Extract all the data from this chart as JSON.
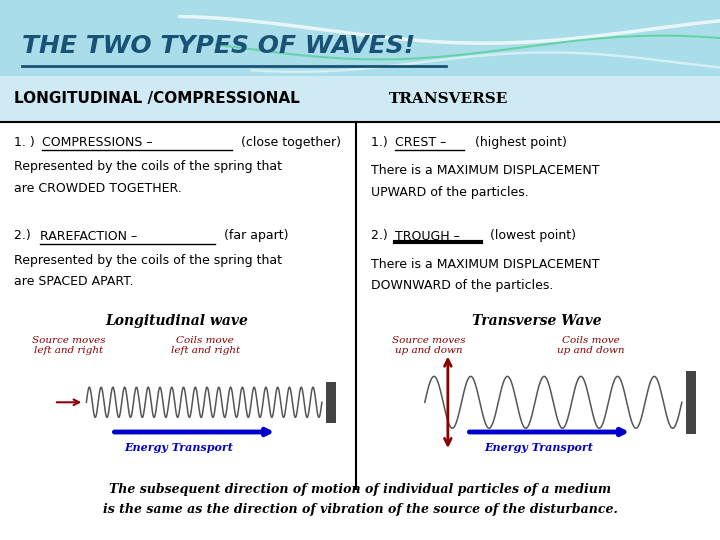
{
  "title": "THE TWO TYPES OF WAVES!",
  "title_color": "#1a5276",
  "left_header": "LONGITUDINAL /COMPRESSIONAL",
  "right_header": "TRANSVERSE",
  "long_wave_title": "Longitudinal wave",
  "trans_wave_title": "Transverse Wave",
  "long_label1": "Source moves\nleft and right",
  "long_label2": "Coils move\nleft and right",
  "trans_label1": "Source moves\nup and down",
  "trans_label2": "Coils move\nup and down",
  "energy_label": "Energy Transport",
  "footer_line1": "The subsequent direction of motion of individual particles of a medium",
  "footer_line2": "is the same as the direction of vibration of the source of the disturbance.",
  "red_color": "#8B0000",
  "blue_arrow": "#0000cc",
  "header_teal": "#a8dde9",
  "subheader_bg": "#d0eaf5",
  "dark_gray": "#444444",
  "coil_color": "#555555"
}
